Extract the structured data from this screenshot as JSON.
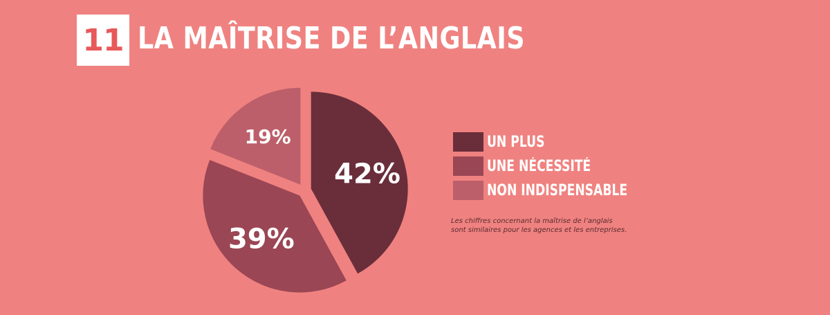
{
  "header": {
    "number": "11",
    "title": "LA MAÎTRISE DE L’ANGLAIS"
  },
  "chart_data": {
    "type": "pie",
    "slices": [
      {
        "label": "UN PLUS",
        "value": 42,
        "display": "42%",
        "color": "#6A2E3B"
      },
      {
        "label": "UNE NÉCESSITÉ",
        "value": 39,
        "display": "39%",
        "color": "#9B4654"
      },
      {
        "label": "NON INDISPENSABLE",
        "value": 19,
        "display": "19%",
        "color": "#BC5F6A"
      }
    ],
    "legend_position": "right"
  },
  "legend": {
    "items": [
      "UN PLUS",
      "UNE NÉCESSITÉ",
      "NON INDISPENSABLE"
    ]
  },
  "note": {
    "line1": "Les chiffres concernant la maîtrise de l’anglais",
    "line2": "sont similaires pour les agences et les entreprises."
  },
  "colors": {
    "background": "#EF8280",
    "number_box": "#FFFFFF",
    "number_text": "#E8595A",
    "title_text": "#FFFFFF"
  }
}
